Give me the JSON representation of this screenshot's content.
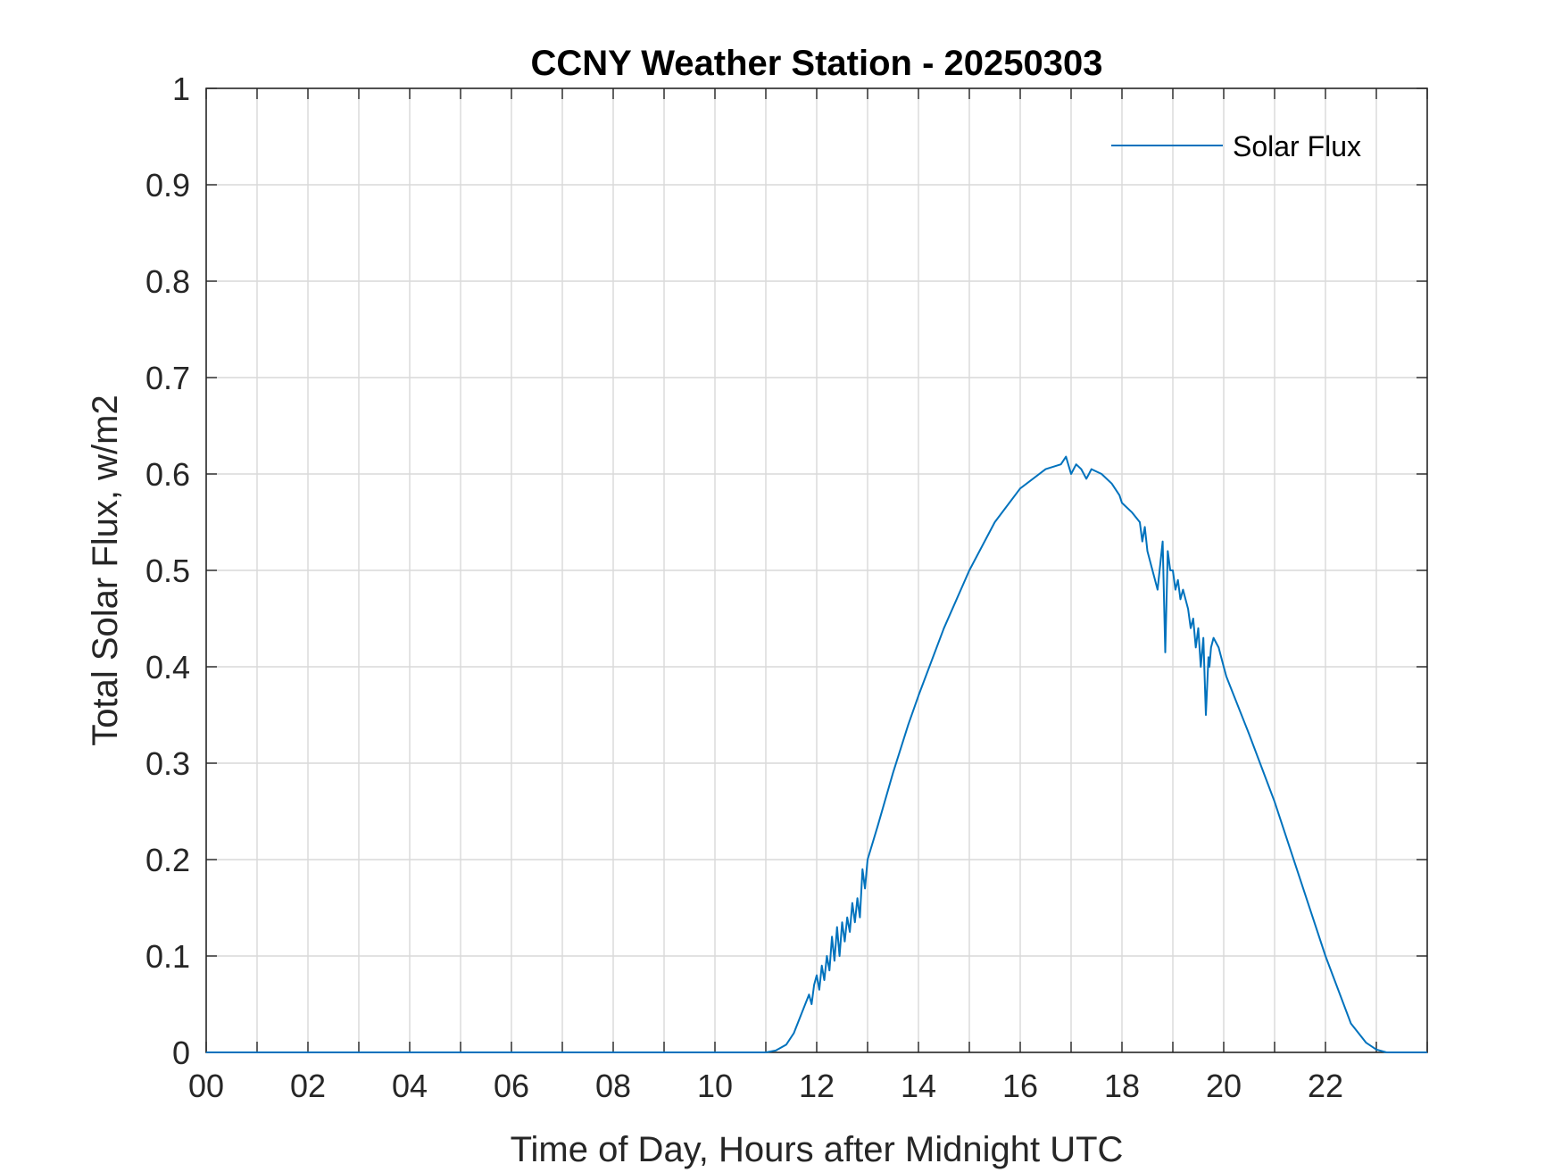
{
  "chart_data": {
    "type": "line",
    "title": "CCNY Weather Station - 20250303",
    "xlabel": "Time of Day, Hours after Midnight UTC",
    "ylabel": "Total Solar Flux, w/m2",
    "xlim": [
      0,
      24
    ],
    "ylim": [
      0,
      1
    ],
    "grid": true,
    "legend_position": "top-right",
    "series_color": "#0072BD",
    "x_ticks": [
      0,
      2,
      4,
      6,
      8,
      10,
      12,
      14,
      16,
      18,
      20,
      22
    ],
    "x_tick_labels": [
      "00",
      "02",
      "04",
      "06",
      "08",
      "10",
      "12",
      "14",
      "16",
      "18",
      "20",
      "22"
    ],
    "y_ticks": [
      0,
      0.1,
      0.2,
      0.3,
      0.4,
      0.5,
      0.6,
      0.7,
      0.8,
      0.9,
      1
    ],
    "y_tick_labels": [
      "0",
      "0.1",
      "0.2",
      "0.3",
      "0.4",
      "0.5",
      "0.6",
      "0.7",
      "0.8",
      "0.9",
      "1"
    ],
    "series": [
      {
        "name": "Solar Flux",
        "x": [
          0,
          11.0,
          11.2,
          11.4,
          11.55,
          11.7,
          11.85,
          11.9,
          11.95,
          12.0,
          12.05,
          12.1,
          12.15,
          12.2,
          12.25,
          12.3,
          12.35,
          12.4,
          12.45,
          12.5,
          12.55,
          12.6,
          12.65,
          12.7,
          12.75,
          12.8,
          12.85,
          12.9,
          12.95,
          13.0,
          13.2,
          13.5,
          13.8,
          14.0,
          14.5,
          15.0,
          15.5,
          16.0,
          16.5,
          16.8,
          16.9,
          17.0,
          17.1,
          17.2,
          17.3,
          17.35,
          17.4,
          17.6,
          17.8,
          17.95,
          18.0,
          18.2,
          18.35,
          18.4,
          18.45,
          18.5,
          18.6,
          18.7,
          18.8,
          18.85,
          18.9,
          18.95,
          19.0,
          19.05,
          19.1,
          19.15,
          19.2,
          19.3,
          19.35,
          19.4,
          19.45,
          19.5,
          19.55,
          19.6,
          19.65,
          19.7,
          19.72,
          19.75,
          19.8,
          19.9,
          20.0,
          20.05,
          20.5,
          21.0,
          21.5,
          22.0,
          22.5,
          22.8,
          23.0,
          23.2,
          23.4,
          24.0
        ],
        "y": [
          0,
          0,
          0.002,
          0.008,
          0.02,
          0.04,
          0.06,
          0.05,
          0.07,
          0.08,
          0.065,
          0.09,
          0.075,
          0.1,
          0.085,
          0.12,
          0.095,
          0.13,
          0.1,
          0.135,
          0.115,
          0.14,
          0.125,
          0.155,
          0.135,
          0.16,
          0.14,
          0.19,
          0.17,
          0.2,
          0.235,
          0.29,
          0.34,
          0.37,
          0.44,
          0.5,
          0.55,
          0.585,
          0.605,
          0.61,
          0.618,
          0.6,
          0.61,
          0.605,
          0.595,
          0.6,
          0.605,
          0.6,
          0.59,
          0.578,
          0.57,
          0.56,
          0.55,
          0.53,
          0.545,
          0.52,
          0.5,
          0.48,
          0.53,
          0.415,
          0.52,
          0.5,
          0.5,
          0.48,
          0.49,
          0.47,
          0.48,
          0.46,
          0.44,
          0.45,
          0.42,
          0.44,
          0.4,
          0.43,
          0.35,
          0.41,
          0.4,
          0.42,
          0.43,
          0.42,
          0.4,
          0.39,
          0.33,
          0.26,
          0.18,
          0.1,
          0.03,
          0.01,
          0.003,
          0,
          0,
          0
        ]
      }
    ]
  }
}
